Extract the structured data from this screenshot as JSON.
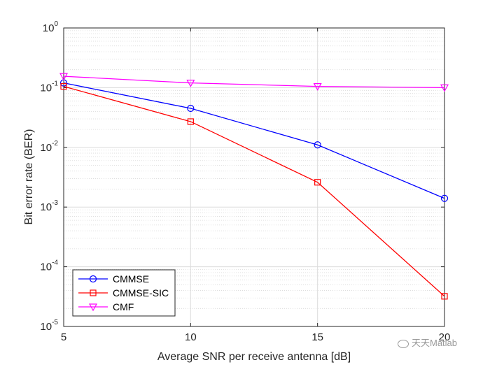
{
  "chart_data": {
    "type": "line",
    "title": "",
    "xlabel": "Average SNR per receive antenna [dB]",
    "ylabel": "Bit error rate (BER)",
    "x": [
      5,
      10,
      15,
      20
    ],
    "xlim": [
      5,
      20
    ],
    "ylim": [
      1e-05,
      1
    ],
    "yscale": "log",
    "grid": true,
    "xticks": [
      "5",
      "10",
      "15",
      "20"
    ],
    "yticks": [
      {
        "value": 1,
        "base": "10",
        "exp": "0"
      },
      {
        "value": 0.1,
        "base": "10",
        "exp": "-1"
      },
      {
        "value": 0.01,
        "base": "10",
        "exp": "-2"
      },
      {
        "value": 0.001,
        "base": "10",
        "exp": "-3"
      },
      {
        "value": 0.0001,
        "base": "10",
        "exp": "-4"
      },
      {
        "value": 1e-05,
        "base": "10",
        "exp": "-5"
      }
    ],
    "legend_position": "bottom-left",
    "series": [
      {
        "name": "CMMSE",
        "color": "#0000ff",
        "marker": "circle",
        "values": [
          0.12,
          0.045,
          0.011,
          0.0014
        ]
      },
      {
        "name": "CMMSE-SIC",
        "color": "#ff0000",
        "marker": "square",
        "values": [
          0.105,
          0.027,
          0.0026,
          3.2e-05
        ]
      },
      {
        "name": "CMF",
        "color": "#ff00ff",
        "marker": "triangle-down",
        "values": [
          0.155,
          0.12,
          0.105,
          0.1
        ]
      }
    ]
  },
  "watermark": {
    "text": "天天Matlab",
    "icon": "wechat-icon"
  }
}
